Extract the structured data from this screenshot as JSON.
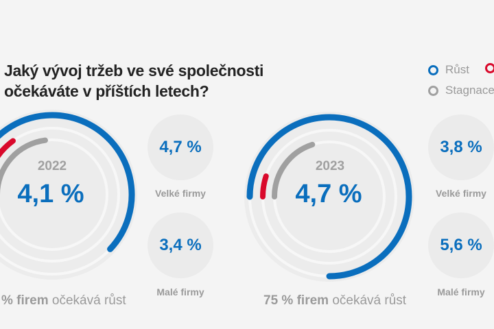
{
  "title_line1": "Jaký vývoj tržeb ve své společnosti",
  "title_line2": "očekáváte v příštích letech?",
  "legend": [
    {
      "label": "Růst",
      "color": "#0a6ebd"
    },
    {
      "label": "",
      "color": "#d9092b"
    },
    {
      "label": "Stagnace",
      "color": "#a0a0a0"
    }
  ],
  "chart_data": [
    {
      "type": "radial-bar",
      "year": "2022",
      "headline": "4,1 %",
      "series": [
        {
          "name": "Růst",
          "value": 62,
          "color": "#0a6ebd"
        },
        {
          "value": 15,
          "color": "#d9092b"
        },
        {
          "name": "Stagnace",
          "value": 23,
          "color": "#a0a0a0"
        }
      ],
      "footer_bold": "% firem",
      "footer_rest": " očekává růst",
      "large": {
        "value": "4,7 %",
        "label": "Velké firmy"
      },
      "small": {
        "value": "3,4 %",
        "label": "Malé firmy"
      }
    },
    {
      "type": "radial-bar",
      "year": "2023",
      "headline": "4,7 %",
      "series": [
        {
          "name": "Růst",
          "value": 75,
          "color": "#0a6ebd"
        },
        {
          "value": 5,
          "color": "#d9092b"
        },
        {
          "name": "Stagnace",
          "value": 20,
          "color": "#a0a0a0"
        }
      ],
      "footer_bold": "75 % firem",
      "footer_rest": " očekává růst",
      "large": {
        "value": "3,8 %",
        "label": "Velké firmy"
      },
      "small": {
        "value": "5,6 %",
        "label": "Malé firmy"
      }
    }
  ]
}
